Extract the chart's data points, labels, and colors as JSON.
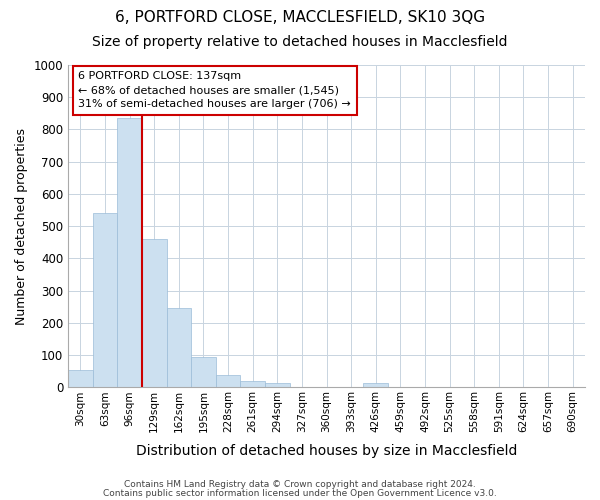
{
  "title1": "6, PORTFORD CLOSE, MACCLESFIELD, SK10 3QG",
  "title2": "Size of property relative to detached houses in Macclesfield",
  "xlabel": "Distribution of detached houses by size in Macclesfield",
  "ylabel": "Number of detached properties",
  "footnote1": "Contains HM Land Registry data © Crown copyright and database right 2024.",
  "footnote2": "Contains public sector information licensed under the Open Government Licence v3.0.",
  "annotation_line1": "6 PORTFORD CLOSE: 137sqm",
  "annotation_line2": "← 68% of detached houses are smaller (1,545)",
  "annotation_line3": "31% of semi-detached houses are larger (706) →",
  "bar_labels": [
    "30sqm",
    "63sqm",
    "96sqm",
    "129sqm",
    "162sqm",
    "195sqm",
    "228sqm",
    "261sqm",
    "294sqm",
    "327sqm",
    "360sqm",
    "393sqm",
    "426sqm",
    "459sqm",
    "492sqm",
    "525sqm",
    "558sqm",
    "591sqm",
    "624sqm",
    "657sqm",
    "690sqm"
  ],
  "bar_values": [
    55,
    540,
    835,
    460,
    245,
    95,
    40,
    20,
    15,
    0,
    0,
    0,
    15,
    0,
    0,
    0,
    0,
    0,
    0,
    0,
    0
  ],
  "bar_color": "#cce0f0",
  "bar_edge_color": "#9bbcd8",
  "red_line_after_index": 2,
  "ylim": [
    0,
    1000
  ],
  "yticks": [
    0,
    100,
    200,
    300,
    400,
    500,
    600,
    700,
    800,
    900,
    1000
  ],
  "bg_color": "#ffffff",
  "plot_bg_color": "#ffffff",
  "grid_color": "#c8d4e0",
  "annotation_box_bg": "#ffffff",
  "annotation_box_edge": "#cc0000",
  "red_line_color": "#cc0000",
  "title1_fontsize": 11,
  "title2_fontsize": 10,
  "ylabel_fontsize": 9,
  "xlabel_fontsize": 10
}
